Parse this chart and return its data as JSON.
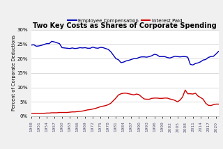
{
  "title": "Two Key Costs as Shares of Corporate Spending",
  "ylabel": "Percent of Corporate Deductions",
  "legend_labels": [
    "Employee Compensation",
    "Interest Paid"
  ],
  "line_colors": [
    "#0000bb",
    "#cc0000"
  ],
  "background_color": "#f0f0f0",
  "plot_bg_color": "#ffffff",
  "ylim": [
    0,
    0.3
  ],
  "yticks": [
    0.0,
    0.05,
    0.1,
    0.15,
    0.2,
    0.25,
    0.3
  ],
  "ytick_labels": [
    "0%",
    "5%",
    "10%",
    "15%",
    "20%",
    "25%",
    "30%"
  ],
  "years": [
    1948,
    1949,
    1950,
    1951,
    1952,
    1953,
    1954,
    1955,
    1956,
    1957,
    1958,
    1959,
    1960,
    1961,
    1962,
    1963,
    1964,
    1965,
    1966,
    1967,
    1968,
    1969,
    1970,
    1971,
    1972,
    1973,
    1974,
    1975,
    1976,
    1977,
    1978,
    1979,
    1980,
    1981,
    1982,
    1983,
    1984,
    1985,
    1986,
    1987,
    1988,
    1989,
    1990,
    1991,
    1992,
    1993,
    1994,
    1995,
    1996,
    1997,
    1998,
    1999,
    2000,
    2001,
    2002,
    2003,
    2004,
    2005,
    2006,
    2007,
    2008,
    2009,
    2010,
    2011,
    2012,
    2013,
    2014,
    2015,
    2016,
    2017,
    2018,
    2019,
    2020,
    2021
  ],
  "emp_comp": [
    0.247,
    0.248,
    0.243,
    0.244,
    0.246,
    0.249,
    0.252,
    0.252,
    0.26,
    0.258,
    0.255,
    0.252,
    0.238,
    0.237,
    0.236,
    0.235,
    0.237,
    0.235,
    0.236,
    0.238,
    0.237,
    0.238,
    0.236,
    0.236,
    0.24,
    0.237,
    0.236,
    0.239,
    0.238,
    0.235,
    0.232,
    0.224,
    0.212,
    0.2,
    0.196,
    0.186,
    0.188,
    0.192,
    0.194,
    0.197,
    0.2,
    0.2,
    0.204,
    0.206,
    0.206,
    0.205,
    0.207,
    0.21,
    0.215,
    0.213,
    0.207,
    0.207,
    0.207,
    0.204,
    0.202,
    0.205,
    0.208,
    0.207,
    0.206,
    0.207,
    0.207,
    0.205,
    0.18,
    0.178,
    0.183,
    0.185,
    0.189,
    0.195,
    0.197,
    0.204,
    0.207,
    0.208,
    0.216,
    0.225
  ],
  "int_paid": [
    0.01,
    0.01,
    0.01,
    0.01,
    0.01,
    0.01,
    0.011,
    0.011,
    0.012,
    0.012,
    0.012,
    0.013,
    0.013,
    0.013,
    0.013,
    0.014,
    0.015,
    0.015,
    0.016,
    0.017,
    0.018,
    0.02,
    0.022,
    0.023,
    0.025,
    0.027,
    0.03,
    0.033,
    0.035,
    0.037,
    0.04,
    0.045,
    0.054,
    0.063,
    0.074,
    0.078,
    0.08,
    0.08,
    0.078,
    0.076,
    0.074,
    0.077,
    0.075,
    0.067,
    0.06,
    0.059,
    0.059,
    0.062,
    0.063,
    0.063,
    0.062,
    0.062,
    0.063,
    0.063,
    0.06,
    0.058,
    0.055,
    0.05,
    0.056,
    0.067,
    0.091,
    0.078,
    0.078,
    0.077,
    0.08,
    0.07,
    0.065,
    0.059,
    0.045,
    0.038,
    0.037,
    0.04,
    0.042,
    0.042
  ],
  "xtick_years": [
    1948,
    1951,
    1954,
    1957,
    1960,
    1963,
    1966,
    1969,
    1972,
    1975,
    1978,
    1981,
    1984,
    1987,
    1990,
    1993,
    1996,
    1999,
    2002,
    2005,
    2008,
    2011,
    2014,
    2017,
    2020
  ]
}
